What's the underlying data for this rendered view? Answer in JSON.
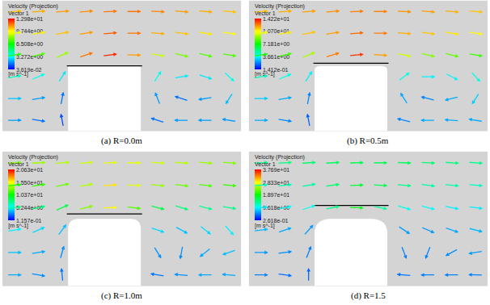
{
  "chart_data": [
    {
      "type": "vector_field",
      "title": "(a) R=0.0m",
      "R": 0.0,
      "legend_title": "Velocity (Projection)",
      "legend_subtitle": "Vector 1",
      "colorbar_unit": "[m s^-1]",
      "colorbar_range": [
        0.03619,
        12.98
      ],
      "colorbar_ticks": [
        {
          "value": 0.03619,
          "label": "3.619e-02"
        },
        {
          "value": 3.272,
          "label": "3.272e+00"
        },
        {
          "value": 6.508,
          "label": "6.508e+00"
        },
        {
          "value": 9.744,
          "label": "9.744e+00"
        },
        {
          "value": 12.98,
          "label": "1.298e+01"
        }
      ],
      "speed": [
        [
          10.5,
          10.8,
          11.0,
          11.2,
          11.5,
          11.5,
          11.3,
          11.0,
          10.8,
          10.5
        ],
        [
          9.5,
          10.0,
          10.5,
          11.0,
          11.8,
          11.5,
          10.8,
          10.5,
          10.0,
          9.8
        ],
        [
          7.0,
          7.5,
          8.5,
          11.5,
          12.5,
          11.0,
          9.0,
          8.0,
          7.5,
          7.5
        ],
        [
          4.0,
          3.5,
          3.0,
          null,
          null,
          null,
          3.5,
          3.0,
          3.0,
          3.5
        ],
        [
          2.5,
          2.0,
          1.5,
          null,
          null,
          null,
          2.0,
          1.5,
          2.0,
          2.5
        ],
        [
          2.0,
          1.5,
          1.0,
          null,
          null,
          null,
          1.5,
          2.0,
          2.0,
          2.0
        ]
      ],
      "direction_deg": [
        [
          5,
          5,
          5,
          5,
          3,
          0,
          -3,
          -5,
          -5,
          -5
        ],
        [
          8,
          10,
          12,
          10,
          5,
          0,
          -5,
          -8,
          -10,
          -8
        ],
        [
          10,
          15,
          25,
          20,
          8,
          -2,
          -10,
          -15,
          -15,
          -10
        ],
        [
          10,
          25,
          60,
          null,
          null,
          null,
          60,
          10,
          -20,
          -45
        ],
        [
          0,
          10,
          80,
          null,
          null,
          null,
          110,
          160,
          -170,
          -120
        ],
        [
          0,
          -10,
          100,
          null,
          null,
          null,
          160,
          180,
          180,
          170
        ]
      ]
    },
    {
      "type": "vector_field",
      "title": "(b) R=0.5m",
      "R": 0.5,
      "legend_title": "Velocity (Projection)",
      "legend_subtitle": "Vector 1",
      "colorbar_unit": "[m s^-1]",
      "colorbar_range": [
        0.1412,
        14.22
      ],
      "colorbar_ticks": [
        {
          "value": 0.1412,
          "label": "1.412e-01"
        },
        {
          "value": 3.661,
          "label": "3.661e+00"
        },
        {
          "value": 7.181,
          "label": "7.181e+00"
        },
        {
          "value": 10.7,
          "label": "1.070e+01"
        },
        {
          "value": 14.22,
          "label": "1.422e+01"
        }
      ],
      "speed": [
        [
          11.5,
          11.8,
          12.0,
          12.2,
          12.5,
          12.4,
          12.2,
          12.0,
          11.8,
          11.5
        ],
        [
          10.5,
          11.0,
          11.5,
          12.0,
          12.8,
          12.5,
          11.8,
          11.5,
          11.0,
          10.8
        ],
        [
          7.5,
          8.0,
          9.5,
          12.5,
          13.5,
          12.0,
          10.0,
          9.0,
          8.5,
          8.0
        ],
        [
          4.5,
          4.0,
          3.5,
          null,
          null,
          null,
          4.0,
          3.5,
          3.5,
          4.0
        ],
        [
          3.0,
          2.5,
          2.0,
          null,
          null,
          null,
          2.5,
          2.0,
          2.5,
          3.0
        ],
        [
          2.5,
          2.0,
          1.5,
          null,
          null,
          null,
          2.0,
          2.5,
          2.5,
          2.5
        ]
      ],
      "direction_deg": [
        [
          5,
          5,
          5,
          5,
          3,
          0,
          -3,
          -5,
          -5,
          -5
        ],
        [
          8,
          10,
          12,
          10,
          5,
          0,
          -5,
          -8,
          -10,
          -8
        ],
        [
          10,
          15,
          25,
          18,
          6,
          -4,
          -12,
          -15,
          -15,
          -10
        ],
        [
          10,
          25,
          60,
          null,
          null,
          null,
          40,
          0,
          -30,
          -50
        ],
        [
          0,
          10,
          80,
          null,
          null,
          null,
          120,
          165,
          -165,
          -120
        ],
        [
          0,
          -10,
          100,
          null,
          null,
          null,
          165,
          180,
          175,
          170
        ]
      ]
    },
    {
      "type": "vector_field",
      "title": "(c) R=1.0m",
      "R": 1.0,
      "legend_title": "Velocity (Projection)",
      "legend_subtitle": "Vector 1",
      "colorbar_unit": "[m s^-1]",
      "colorbar_range": [
        0.1157,
        20.63
      ],
      "colorbar_ticks": [
        {
          "value": 0.1157,
          "label": "1.157e-01"
        },
        {
          "value": 5.244,
          "label": "5.244e+00"
        },
        {
          "value": 10.37,
          "label": "1.037e+01"
        },
        {
          "value": 15.5,
          "label": "1.550e+01"
        },
        {
          "value": 20.63,
          "label": "2.063e+01"
        }
      ],
      "speed": [
        [
          13.0,
          13.5,
          14.0,
          14.5,
          15.0,
          15.0,
          14.5,
          14.0,
          13.5,
          13.0
        ],
        [
          11.0,
          11.5,
          12.5,
          14.0,
          16.0,
          15.0,
          13.5,
          12.5,
          12.0,
          11.5
        ],
        [
          7.5,
          8.0,
          9.0,
          13.0,
          15.5,
          12.0,
          9.0,
          8.0,
          7.5,
          7.5
        ],
        [
          5.0,
          4.5,
          4.0,
          null,
          null,
          null,
          4.5,
          4.0,
          4.5,
          5.0
        ],
        [
          4.0,
          3.5,
          3.0,
          null,
          null,
          null,
          3.0,
          3.0,
          3.5,
          4.0
        ],
        [
          3.5,
          3.0,
          2.5,
          null,
          null,
          null,
          2.5,
          3.0,
          3.5,
          3.5
        ]
      ],
      "direction_deg": [
        [
          4,
          4,
          5,
          5,
          3,
          0,
          -3,
          -4,
          -5,
          -5
        ],
        [
          6,
          8,
          12,
          10,
          4,
          -2,
          -6,
          -8,
          -8,
          -6
        ],
        [
          8,
          12,
          25,
          15,
          2,
          -8,
          -15,
          -18,
          -15,
          -10
        ],
        [
          10,
          25,
          55,
          null,
          null,
          null,
          -20,
          -30,
          -40,
          -50
        ],
        [
          0,
          10,
          75,
          null,
          null,
          null,
          -60,
          -100,
          -140,
          -160
        ],
        [
          0,
          -10,
          95,
          null,
          null,
          null,
          170,
          175,
          180,
          175
        ]
      ]
    },
    {
      "type": "vector_field",
      "title": "(d) R=1.5",
      "R": 1.5,
      "legend_title": "Velocity (Projection)",
      "legend_subtitle": "Vector 1",
      "colorbar_unit": "[m s^-1]",
      "colorbar_range": [
        0.2618,
        37.69
      ],
      "colorbar_ticks": [
        {
          "value": 0.2618,
          "label": "2.618e-01"
        },
        {
          "value": 9.618,
          "label": "9.618e+00"
        },
        {
          "value": 18.97,
          "label": "1.897e+01"
        },
        {
          "value": 28.33,
          "label": "2.833e+01"
        },
        {
          "value": 37.69,
          "label": "3.769e+01"
        }
      ],
      "speed": [
        [
          14.0,
          14.5,
          15.0,
          15.5,
          16.0,
          16.0,
          15.5,
          15.0,
          14.5,
          14.0
        ],
        [
          12.0,
          12.5,
          13.0,
          15.0,
          17.0,
          16.0,
          14.0,
          13.0,
          12.5,
          12.0
        ],
        [
          9.0,
          9.5,
          10.0,
          14.0,
          18.0,
          13.0,
          10.0,
          9.5,
          9.0,
          9.0
        ],
        [
          7.0,
          6.5,
          6.0,
          null,
          null,
          null,
          6.0,
          6.0,
          6.5,
          7.0
        ],
        [
          6.0,
          5.5,
          5.0,
          null,
          null,
          null,
          5.0,
          5.0,
          5.5,
          6.0
        ],
        [
          5.0,
          4.5,
          4.0,
          null,
          null,
          null,
          4.5,
          5.0,
          5.0,
          5.0
        ]
      ],
      "direction_deg": [
        [
          3,
          3,
          4,
          4,
          2,
          0,
          -2,
          -3,
          -4,
          -4
        ],
        [
          5,
          6,
          10,
          8,
          2,
          -4,
          -6,
          -8,
          -6,
          -5
        ],
        [
          6,
          10,
          20,
          12,
          -2,
          -12,
          -18,
          -15,
          -12,
          -8
        ],
        [
          8,
          20,
          50,
          null,
          null,
          null,
          -35,
          -25,
          -20,
          -15
        ],
        [
          0,
          8,
          70,
          null,
          null,
          null,
          -70,
          -110,
          -150,
          -170
        ],
        [
          0,
          -8,
          90,
          null,
          null,
          null,
          175,
          180,
          180,
          178
        ]
      ]
    }
  ]
}
